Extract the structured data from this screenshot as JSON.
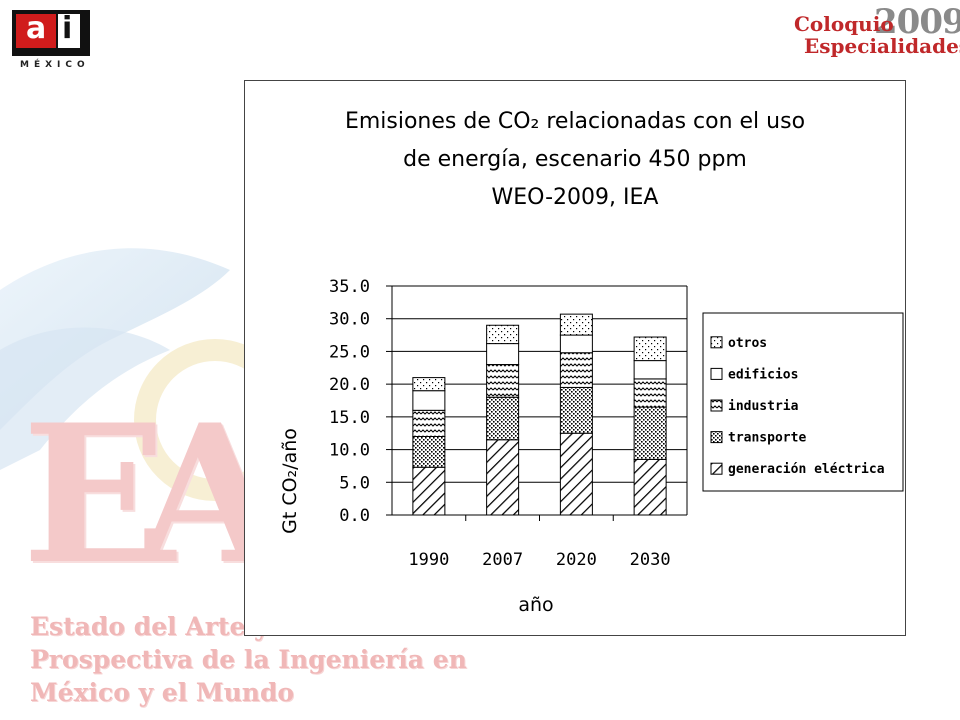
{
  "logo_left": {
    "letters": [
      "a",
      "i"
    ],
    "subtitle": "MÉXICO"
  },
  "logo_right": {
    "word": "Coloquio",
    "year": "2009",
    "subtitle": "Especialidades"
  },
  "background": {
    "big_letters": "EA",
    "caption_lines": [
      "Estado del Arte y",
      "Prospectiva de la Ingeniería en",
      "México y el Mundo"
    ]
  },
  "chart_data": {
    "type": "bar",
    "stacked": true,
    "title_lines": [
      "Emisiones de CO₂ relacionadas con el uso",
      "de energía, escenario 450 ppm",
      "WEO-2009, IEA"
    ],
    "xlabel": "año",
    "ylabel": "Gt CO₂/año",
    "ylim": [
      0,
      35
    ],
    "yticks": [
      "0.0",
      "5.0",
      "10.0",
      "15.0",
      "20.0",
      "25.0",
      "30.0",
      "35.0"
    ],
    "grid": true,
    "legend_position": "right",
    "categories": [
      "1990",
      "2007",
      "2020",
      "2030"
    ],
    "series": [
      {
        "name": "generación eléctrica",
        "pattern": "diagonal-hatch",
        "values": [
          7.3,
          11.5,
          12.5,
          8.5
        ]
      },
      {
        "name": "transporte",
        "pattern": "dots",
        "values": [
          4.7,
          6.5,
          7.0,
          8.0
        ]
      },
      {
        "name": "industria",
        "pattern": "waves",
        "values": [
          4.0,
          5.0,
          5.3,
          4.3
        ]
      },
      {
        "name": "edificios",
        "pattern": "blank",
        "values": [
          3.0,
          3.2,
          2.7,
          2.8
        ]
      },
      {
        "name": "otros",
        "pattern": "sparse-dots",
        "values": [
          2.0,
          2.8,
          3.2,
          3.6
        ]
      }
    ]
  }
}
